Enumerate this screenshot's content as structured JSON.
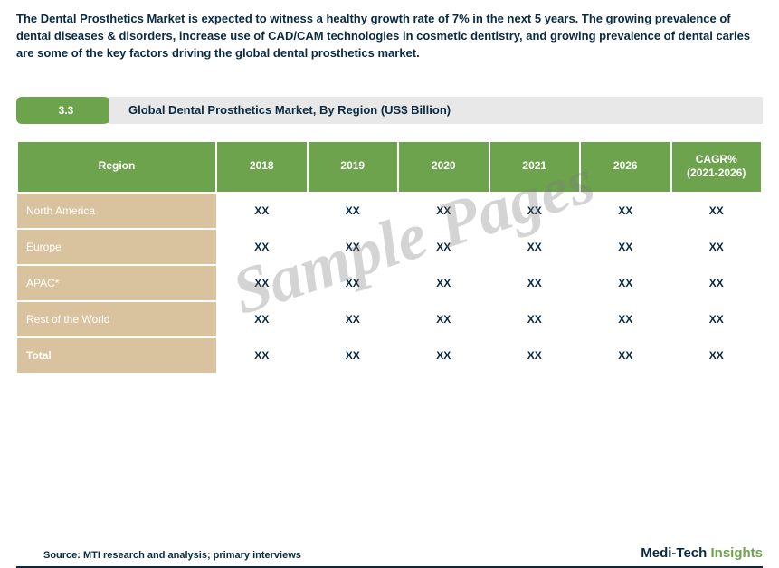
{
  "intro_text": "The Dental Prosthetics Market is expected to witness a healthy growth rate of 7% in the next 5 years. The growing prevalence of dental diseases & disorders, increase use of CAD/CAM technologies in cosmetic dentistry, and growing prevalence of dental caries are some of the key factors driving the global dental prosthetics market.",
  "section": {
    "number": "3.3",
    "title": "Global  Dental Prosthetics Market, By Region (US$ Billion)"
  },
  "table": {
    "columns": [
      "Region",
      "2018",
      "2019",
      "2020",
      "2021",
      "2026",
      "CAGR%\n(2021-2026)"
    ],
    "rows": [
      {
        "label": "North America",
        "cells": [
          "XX",
          "XX",
          "XX",
          "XX",
          "XX",
          "XX"
        ]
      },
      {
        "label": "Europe",
        "cells": [
          "XX",
          "XX",
          "XX",
          "XX",
          "XX",
          "XX"
        ]
      },
      {
        "label": "APAC*",
        "cells": [
          "XX",
          "XX",
          "XX",
          "XX",
          "XX",
          "XX"
        ]
      },
      {
        "label": "Rest of the World",
        "cells": [
          "XX",
          "XX",
          "XX",
          "XX",
          "XX",
          "XX"
        ]
      },
      {
        "label": "Total",
        "cells": [
          "XX",
          "XX",
          "XX",
          "XX",
          "XX",
          "XX"
        ],
        "bold": true
      }
    ],
    "header_bg": "#6da34d",
    "header_fg": "#ffffff",
    "label_bg": "#d9c29e",
    "label_fg": "#ffffff",
    "cell_fg": "#0a2a43",
    "font_size": 12
  },
  "watermark": "Sample Pages",
  "footer": {
    "source": "Source: MTI research and analysis; primary interviews",
    "brand1": "Medi-Tech ",
    "brand2": "Insights",
    "brand1_color": "#0a2a43",
    "brand2_color": "#6da34d"
  },
  "colors": {
    "accent_green": "#6da34d",
    "section_bar_bg": "#e8e8e8",
    "text_dark": "#0a2a43",
    "tan": "#d9c29e",
    "background": "#ffffff"
  }
}
